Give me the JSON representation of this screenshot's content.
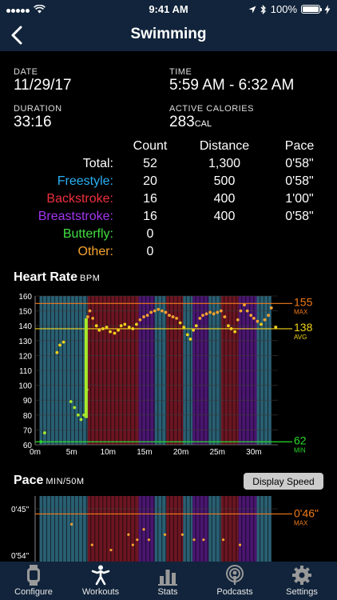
{
  "status": {
    "time": "9:41 AM",
    "battery": "100%"
  },
  "nav": {
    "title": "Swimming"
  },
  "summary": {
    "date_label": "DATE",
    "date": "11/29/17",
    "time_label": "TIME",
    "time": "5:59 AM - 6:32 AM",
    "duration_label": "DURATION",
    "duration": "33:16",
    "calories_label": "ACTIVE CALORIES",
    "calories": "283",
    "calories_unit": "CAL"
  },
  "stats": {
    "headers": [
      "Count",
      "Distance",
      "Pace"
    ],
    "rows": [
      {
        "label": "Total:",
        "color": "#ffffff",
        "count": "52",
        "distance": "1,300",
        "pace": "0'58\""
      },
      {
        "label": "Freestyle:",
        "color": "#2ab0f5",
        "count": "20",
        "distance": "500",
        "pace": "0'58\""
      },
      {
        "label": "Backstroke:",
        "color": "#f0303e",
        "count": "16",
        "distance": "400",
        "pace": "1'00\""
      },
      {
        "label": "Breaststroke:",
        "color": "#a335f0",
        "count": "16",
        "distance": "400",
        "pace": "0'58\""
      },
      {
        "label": "Butterfly:",
        "color": "#43e043",
        "count": "0",
        "distance": "",
        "pace": ""
      },
      {
        "label": "Other:",
        "color": "#f5a32e",
        "count": "0",
        "distance": "",
        "pace": ""
      }
    ]
  },
  "heart_section": {
    "title": "Heart Rate",
    "unit": "BPM"
  },
  "pace_section": {
    "title": "Pace",
    "unit": "MIN/50M",
    "button": "Display Speed"
  },
  "colors": {
    "freestyle": "#2a5f73",
    "backstroke": "#6b1622",
    "breaststroke": "#4a1670",
    "max": "#f07a1a",
    "avg": "#f0d21a",
    "min": "#2bd82b"
  },
  "chart_data": [
    {
      "type": "scatter",
      "title": "Heart Rate",
      "ylabel": "BPM",
      "ylim": [
        60,
        160
      ],
      "xlim": [
        0,
        33.3
      ],
      "y_ticks": [
        60,
        70,
        80,
        90,
        100,
        110,
        120,
        130,
        140,
        150,
        160
      ],
      "x_ticks": [
        "0m",
        "5m",
        "10m",
        "15m",
        "20m",
        "25m",
        "30m"
      ],
      "reference_lines": [
        {
          "label": "MAX",
          "value_text": "155",
          "value": 155,
          "color": "#f07a1a"
        },
        {
          "label": "AVG",
          "value_text": "138",
          "value": 138,
          "color": "#f0d21a"
        },
        {
          "label": "MIN",
          "value_text": "62",
          "value": 62,
          "color": "#2bd82b"
        }
      ],
      "background_intervals": [
        {
          "stroke": "freestyle",
          "start": 0.6,
          "end": 7.2
        },
        {
          "stroke": "backstroke",
          "start": 7.2,
          "end": 14.2
        },
        {
          "stroke": "breaststroke",
          "start": 14.2,
          "end": 16.4
        },
        {
          "stroke": "freestyle",
          "start": 16.4,
          "end": 18.0
        },
        {
          "stroke": "backstroke",
          "start": 18.0,
          "end": 20.3
        },
        {
          "stroke": "freestyle",
          "start": 20.3,
          "end": 21.6
        },
        {
          "stroke": "breaststroke",
          "start": 21.6,
          "end": 23.8
        },
        {
          "stroke": "freestyle",
          "start": 23.8,
          "end": 25.5
        },
        {
          "stroke": "backstroke",
          "start": 25.5,
          "end": 27.9
        },
        {
          "stroke": "breaststroke",
          "start": 27.9,
          "end": 30.4
        },
        {
          "stroke": "freestyle",
          "start": 30.4,
          "end": 32.4
        }
      ],
      "points": [
        [
          0.8,
          62
        ],
        [
          1.3,
          68
        ],
        [
          3.0,
          122
        ],
        [
          3.4,
          127
        ],
        [
          3.9,
          129
        ],
        [
          4.9,
          89
        ],
        [
          5.4,
          85
        ],
        [
          5.9,
          80
        ],
        [
          6.3,
          77
        ],
        [
          6.7,
          80
        ],
        [
          7.1,
          97
        ],
        [
          7.2,
          146
        ],
        [
          7.5,
          150
        ],
        [
          7.9,
          145
        ],
        [
          8.4,
          140
        ],
        [
          8.8,
          137
        ],
        [
          9.3,
          138
        ],
        [
          9.8,
          139
        ],
        [
          10.3,
          136
        ],
        [
          10.9,
          135
        ],
        [
          11.4,
          137
        ],
        [
          11.8,
          140
        ],
        [
          12.3,
          141
        ],
        [
          12.9,
          139
        ],
        [
          13.4,
          138
        ],
        [
          13.9,
          141
        ],
        [
          14.4,
          144
        ],
        [
          14.9,
          146
        ],
        [
          15.4,
          147
        ],
        [
          15.9,
          149
        ],
        [
          16.4,
          150
        ],
        [
          16.9,
          151
        ],
        [
          17.4,
          150
        ],
        [
          17.9,
          149
        ],
        [
          18.4,
          147
        ],
        [
          18.9,
          146
        ],
        [
          19.4,
          145
        ],
        [
          19.9,
          142
        ],
        [
          20.4,
          139
        ],
        [
          20.9,
          134
        ],
        [
          21.3,
          131
        ],
        [
          21.7,
          137
        ],
        [
          22.1,
          140
        ],
        [
          22.6,
          145
        ],
        [
          23.0,
          147
        ],
        [
          23.5,
          148
        ],
        [
          24.0,
          149
        ],
        [
          24.5,
          148
        ],
        [
          25.0,
          149
        ],
        [
          25.5,
          150
        ],
        [
          26.0,
          146
        ],
        [
          26.5,
          140
        ],
        [
          26.9,
          138
        ],
        [
          27.4,
          136
        ],
        [
          27.8,
          144
        ],
        [
          28.2,
          150
        ],
        [
          28.7,
          154
        ],
        [
          29.1,
          150
        ],
        [
          29.6,
          147
        ],
        [
          30.0,
          145
        ],
        [
          30.5,
          143
        ],
        [
          31.0,
          141
        ],
        [
          31.5,
          144
        ],
        [
          32.0,
          147
        ],
        [
          32.4,
          152
        ],
        [
          33.0,
          139
        ]
      ]
    },
    {
      "type": "scatter",
      "title": "Pace",
      "ylabel": "MIN/50M",
      "ylim": [
        45,
        54
      ],
      "y_ticks": [
        "0'45\"",
        "0'54\""
      ],
      "reference_lines": [
        {
          "label": "MAX",
          "value_text": "0'46\"",
          "value": 46,
          "color": "#f07a1a"
        }
      ],
      "points": [
        [
          5.0,
          48
        ],
        [
          7.8,
          52
        ],
        [
          10.4,
          53
        ],
        [
          12.8,
          50
        ],
        [
          13.4,
          52
        ],
        [
          14.0,
          51
        ],
        [
          14.9,
          49
        ],
        [
          15.6,
          51
        ],
        [
          17.8,
          50
        ],
        [
          20.2,
          50
        ],
        [
          21.8,
          51
        ],
        [
          23.1,
          51
        ],
        [
          25.8,
          51
        ],
        [
          28.1,
          52
        ]
      ]
    }
  ],
  "tabs": [
    {
      "label": "Configure",
      "icon": "watch-icon"
    },
    {
      "label": "Workouts",
      "icon": "runner-icon"
    },
    {
      "label": "Stats",
      "icon": "bar-chart-icon"
    },
    {
      "label": "Podcasts",
      "icon": "podcast-icon"
    },
    {
      "label": "Settings",
      "icon": "gear-icon"
    }
  ]
}
